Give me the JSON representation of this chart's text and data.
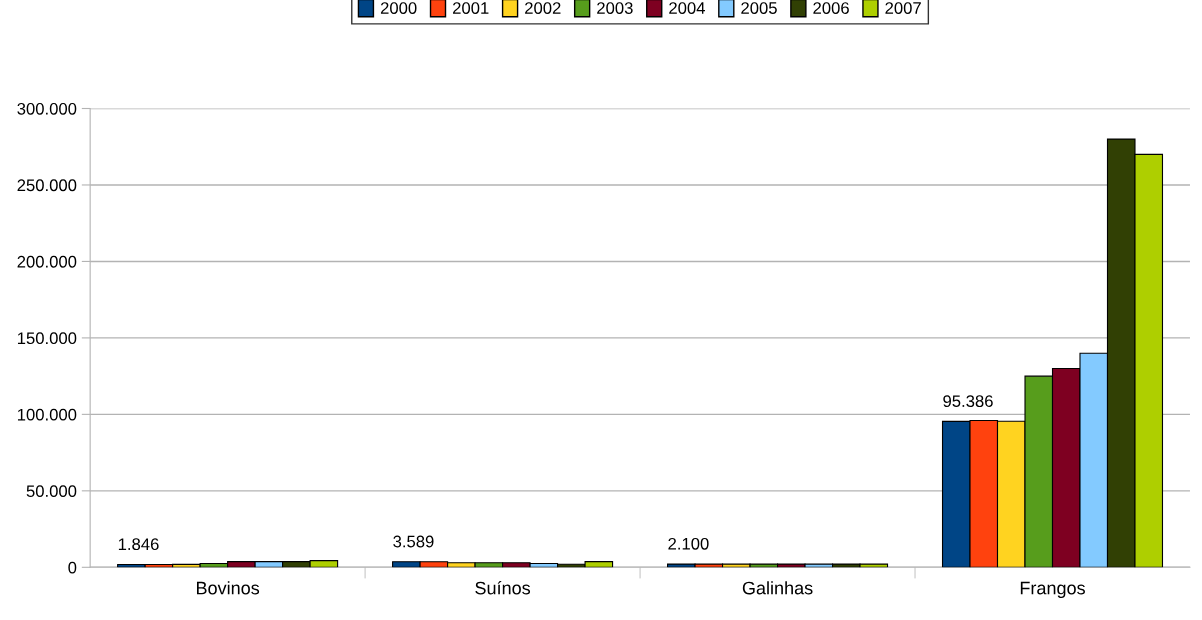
{
  "chart_data": {
    "type": "bar",
    "categories": [
      "Bovinos",
      "Suínos",
      "Galinhas",
      "Frangos"
    ],
    "series": [
      {
        "name": "2000",
        "color": "#004586",
        "values": [
          1846,
          3589,
          2100,
          95386
        ],
        "value_labels": [
          "1.846",
          "3.589",
          "2.100",
          "95.386"
        ]
      },
      {
        "name": "2001",
        "color": "#ff420e",
        "values": [
          1800,
          3600,
          2100,
          96000
        ]
      },
      {
        "name": "2002",
        "color": "#ffd320",
        "values": [
          1900,
          3000,
          2100,
          95500
        ]
      },
      {
        "name": "2003",
        "color": "#579d1c",
        "values": [
          2500,
          3000,
          2100,
          125000
        ]
      },
      {
        "name": "2004",
        "color": "#7e0021",
        "values": [
          3700,
          3000,
          2100,
          130000
        ]
      },
      {
        "name": "2005",
        "color": "#83caff",
        "values": [
          3700,
          2500,
          2100,
          140000
        ]
      },
      {
        "name": "2006",
        "color": "#314004",
        "values": [
          3700,
          2000,
          2100,
          280000
        ]
      },
      {
        "name": "2007",
        "color": "#aecf00",
        "values": [
          4400,
          3700,
          2100,
          270000
        ]
      }
    ],
    "ylim": [
      0,
      300000
    ],
    "yticks": [
      {
        "value": 0,
        "label": "0"
      },
      {
        "value": 50000,
        "label": "50.000"
      },
      {
        "value": 100000,
        "label": "100.000"
      },
      {
        "value": 150000,
        "label": "150.000"
      },
      {
        "value": 200000,
        "label": "200.000"
      },
      {
        "value": 250000,
        "label": "250.000"
      },
      {
        "value": 300000,
        "label": "300.000"
      }
    ],
    "grid": "y",
    "legend": "top"
  }
}
